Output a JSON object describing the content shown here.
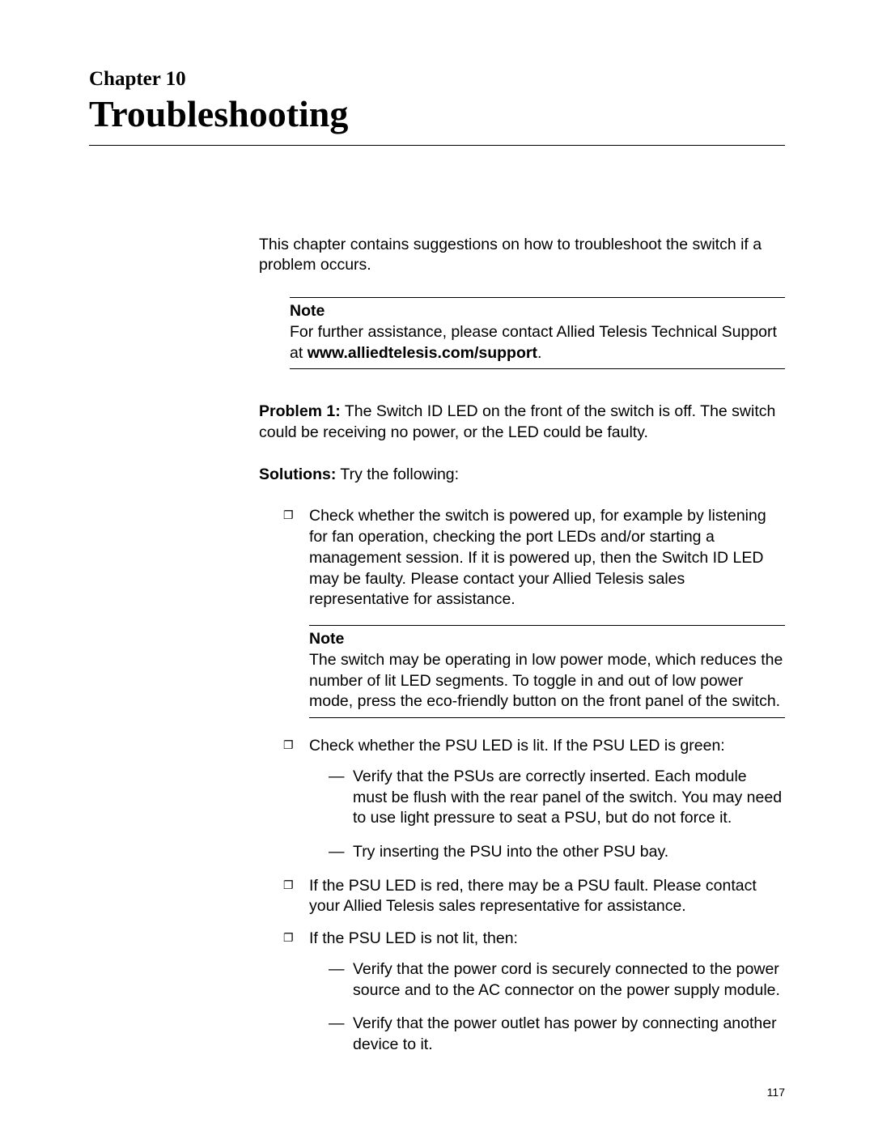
{
  "chapter": {
    "label": "Chapter 10",
    "title": "Troubleshooting"
  },
  "intro": "This chapter contains suggestions on how to troubleshoot the switch if a problem occurs.",
  "note1": {
    "title": "Note",
    "line1": "For further assistance, please contact Allied Telesis Technical Support at ",
    "link": "www.alliedtelesis.com/support",
    "line1_end": "."
  },
  "problem1": {
    "label": "Problem 1:",
    "text": " The Switch ID LED on the front of the switch is off. The switch could be receiving no power, or the LED could be faulty."
  },
  "solutions": {
    "label": "Solutions:",
    "text": " Try the following:"
  },
  "bullets": {
    "b1": "Check whether the switch is powered up, for example by listening for fan operation, checking the port LEDs and/or starting a management session. If it is powered up, then the Switch ID LED may be faulty. Please contact your Allied Telesis sales representative for assistance.",
    "note2": {
      "title": "Note",
      "text": "The switch may be operating in low power mode, which reduces the number of lit LED segments. To toggle in and out of low power mode, press the eco-friendly button on the front panel of the switch."
    },
    "b2": "Check whether the PSU LED is lit. If the PSU LED is green:",
    "b2_sub": {
      "s1": "Verify that the PSUs are correctly inserted. Each module must be flush with the rear panel of the switch. You may need to use light pressure to seat a PSU, but do not force it.",
      "s2": "Try inserting the PSU into the other PSU bay."
    },
    "b3": "If the PSU LED is red, there may be a PSU fault. Please contact your Allied Telesis sales representative for assistance.",
    "b4": "If the PSU LED is not lit, then:",
    "b4_sub": {
      "s1": "Verify that the power cord is securely connected to the power source and to the AC connector on the power supply module.",
      "s2": "Verify that the power outlet has power by connecting another device to it."
    }
  },
  "page_number": "117"
}
